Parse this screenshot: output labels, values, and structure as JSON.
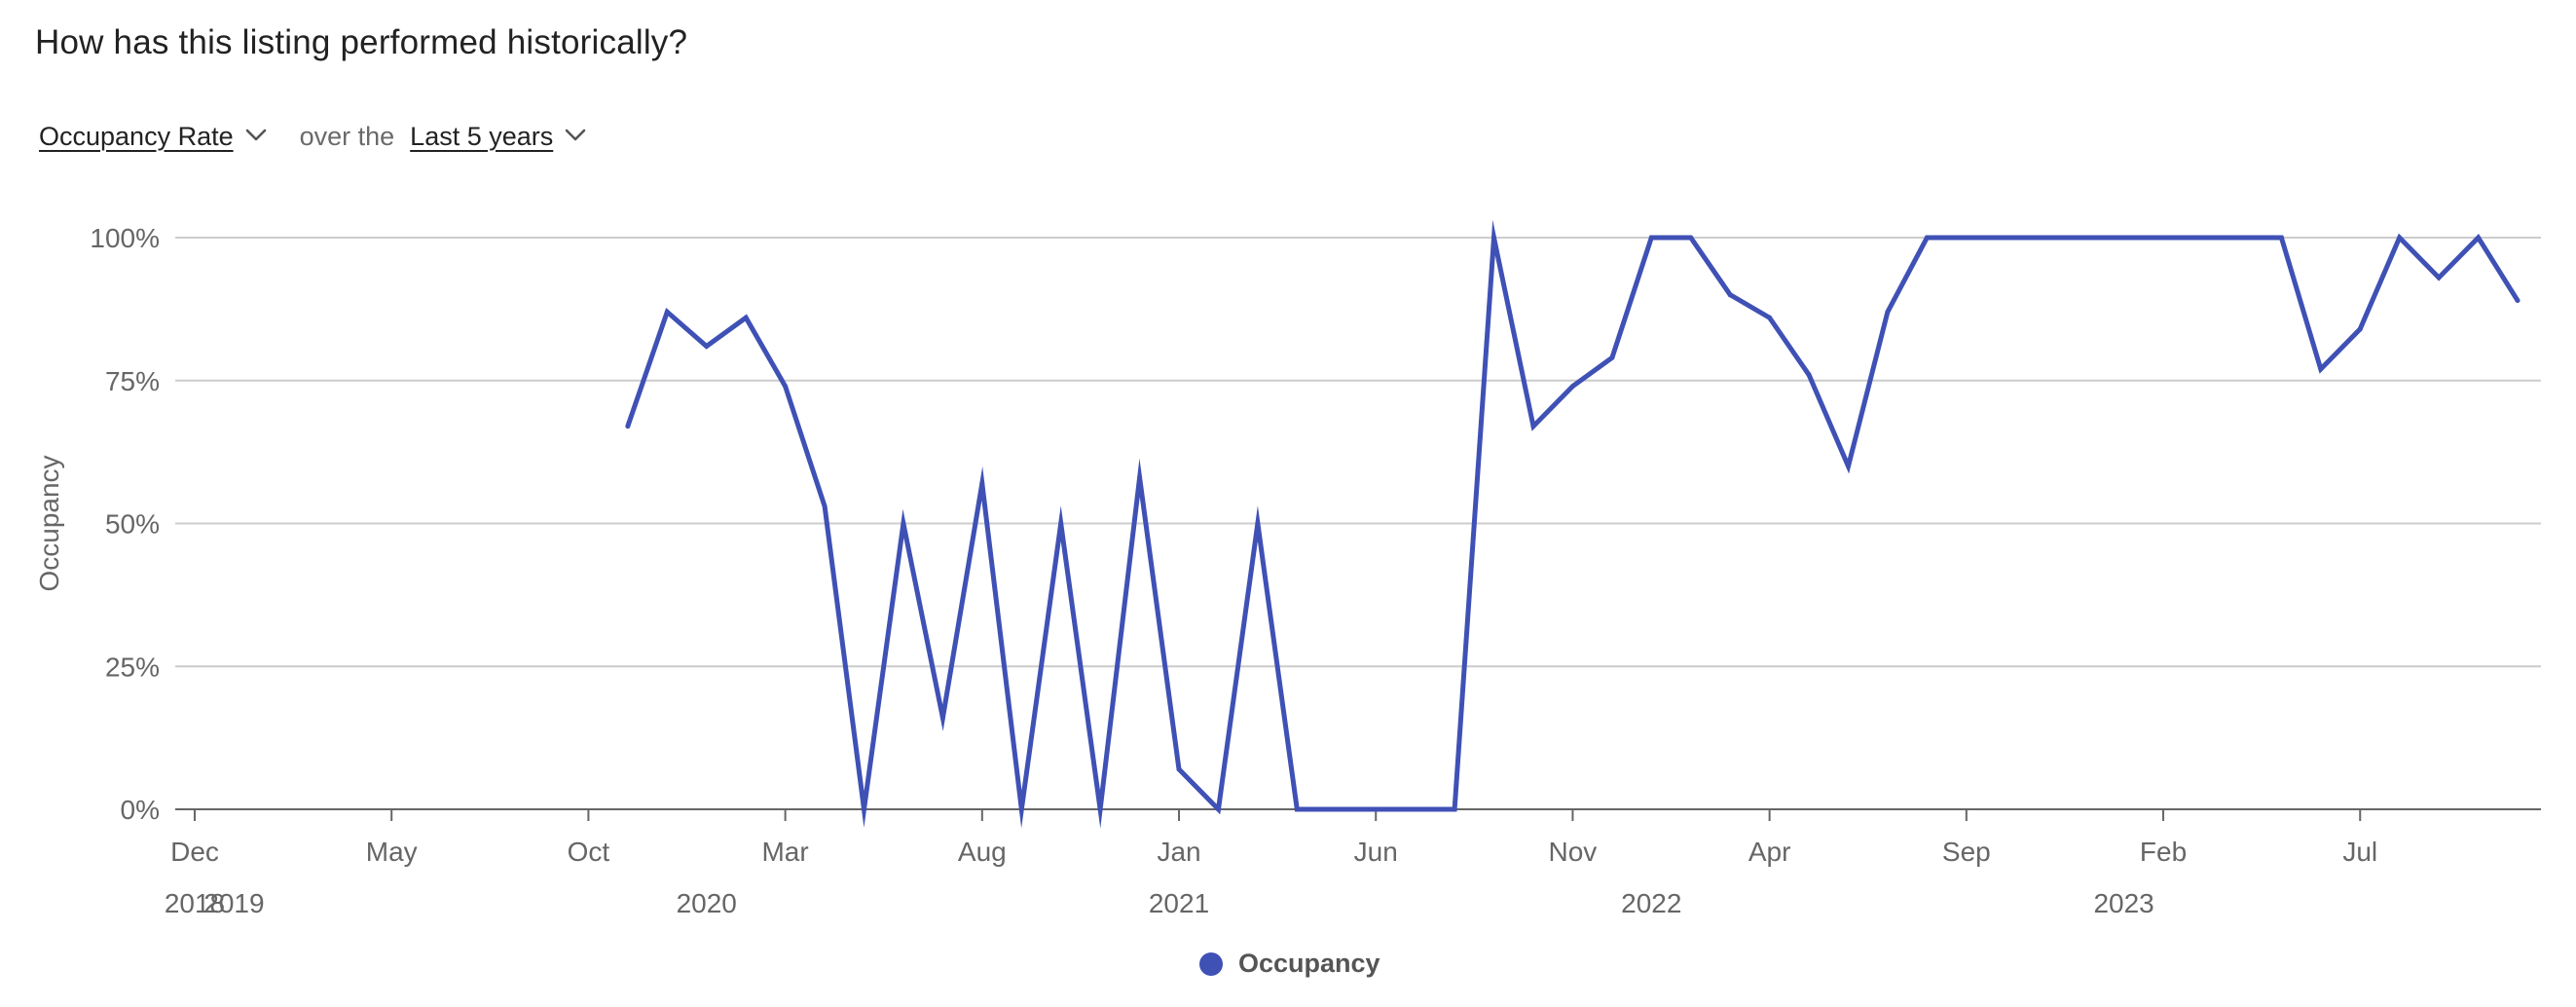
{
  "header": {
    "title": "How has this listing performed historically?"
  },
  "controls": {
    "metric_label": "Occupancy Rate",
    "connector": "over the",
    "range_label": "Last 5 years"
  },
  "colors": {
    "line": "#3f51b5",
    "grid": "#cccccc",
    "axis": "#666666",
    "text": "#666666"
  },
  "icons": {
    "dropdown": "chevron-down-icon"
  },
  "chart_data": {
    "type": "line",
    "ylabel": "Occupancy",
    "xlabel": "",
    "ylim": [
      0,
      100
    ],
    "y_ticks": [
      {
        "value": 0,
        "label": "0%"
      },
      {
        "value": 25,
        "label": "25%"
      },
      {
        "value": 50,
        "label": "50%"
      },
      {
        "value": 75,
        "label": "75%"
      },
      {
        "value": 100,
        "label": "100%"
      }
    ],
    "xlim": [
      "2018-12",
      "2023-11"
    ],
    "x_ticks": [
      {
        "date": "2018-12",
        "label": "Dec"
      },
      {
        "date": "2019-05",
        "label": "May"
      },
      {
        "date": "2019-10",
        "label": "Oct"
      },
      {
        "date": "2020-03",
        "label": "Mar"
      },
      {
        "date": "2020-08",
        "label": "Aug"
      },
      {
        "date": "2021-01",
        "label": "Jan"
      },
      {
        "date": "2021-06",
        "label": "Jun"
      },
      {
        "date": "2021-11",
        "label": "Nov"
      },
      {
        "date": "2022-04",
        "label": "Apr"
      },
      {
        "date": "2022-09",
        "label": "Sep"
      },
      {
        "date": "2023-02",
        "label": "Feb"
      },
      {
        "date": "2023-07",
        "label": "Jul"
      }
    ],
    "year_labels": [
      {
        "date": "2018-12",
        "label": "2018"
      },
      {
        "date": "2019-01",
        "label": "2019"
      },
      {
        "date": "2020-01",
        "label": "2020"
      },
      {
        "date": "2021-01",
        "label": "2021"
      },
      {
        "date": "2022-01",
        "label": "2022"
      },
      {
        "date": "2023-01",
        "label": "2023"
      }
    ],
    "grid": true,
    "legend": "bottom-center",
    "series": [
      {
        "name": "Occupancy",
        "x": [
          "2019-11",
          "2019-12",
          "2020-01",
          "2020-02",
          "2020-03",
          "2020-04",
          "2020-05",
          "2020-06",
          "2020-07",
          "2020-08",
          "2020-09",
          "2020-10",
          "2020-11",
          "2020-12",
          "2021-01",
          "2021-02",
          "2021-03",
          "2021-04",
          "2021-05",
          "2021-06",
          "2021-07",
          "2021-08",
          "2021-09",
          "2021-10",
          "2021-11",
          "2021-12",
          "2022-01",
          "2022-02",
          "2022-03",
          "2022-04",
          "2022-05",
          "2022-06",
          "2022-07",
          "2022-08",
          "2022-09",
          "2022-10",
          "2022-11",
          "2022-12",
          "2023-01",
          "2023-02",
          "2023-03",
          "2023-04",
          "2023-05",
          "2023-06",
          "2023-07",
          "2023-08",
          "2023-09",
          "2023-10",
          "2023-11"
        ],
        "values": [
          67,
          87,
          81,
          86,
          74,
          53,
          0,
          50,
          16,
          57,
          0,
          50,
          0,
          58,
          7,
          0,
          50,
          0,
          0,
          0,
          0,
          0,
          100,
          67,
          74,
          79,
          100,
          100,
          90,
          86,
          76,
          60,
          87,
          100,
          100,
          100,
          100,
          100,
          100,
          100,
          100,
          100,
          100,
          77,
          84,
          100,
          93,
          100,
          89
        ]
      }
    ]
  },
  "legend": {
    "label": "Occupancy"
  }
}
